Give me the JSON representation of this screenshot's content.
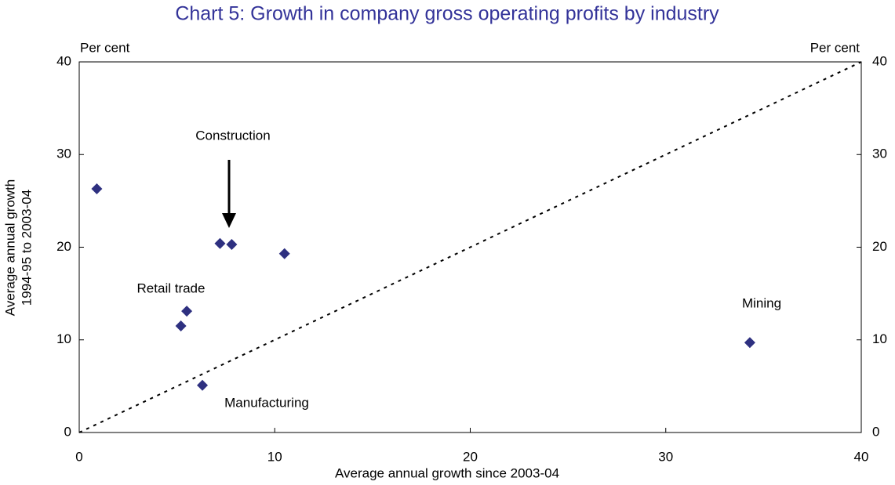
{
  "chart_data": {
    "type": "scatter",
    "title": "Chart 5: Growth in company gross operating profits by industry",
    "x_label": "Average annual growth since 2003-04",
    "y_label": [
      "Average annual growth",
      "1994-95 to 2003-04"
    ],
    "y_unit": "Per cent",
    "y2_unit": "Per cent",
    "x": [
      0.9,
      5.2,
      5.5,
      6.3,
      7.2,
      7.8,
      10.5,
      34.3
    ],
    "values": [
      26.3,
      11.5,
      13.1,
      5.1,
      20.4,
      20.3,
      19.3,
      9.7
    ],
    "color": "#2e3080",
    "xlim": [
      0,
      40
    ],
    "xticks": [
      0,
      10,
      20,
      30,
      40
    ],
    "ylim": [
      0,
      40
    ],
    "yticks": [
      0,
      10,
      20,
      30,
      40
    ],
    "y2lim": [
      0,
      40
    ],
    "y2ticks": [
      0,
      10,
      20,
      30,
      40
    ],
    "diagonal_line": true,
    "annotations": [
      "Construction",
      "Retail trade",
      "Manufacturing",
      "Mining"
    ]
  }
}
